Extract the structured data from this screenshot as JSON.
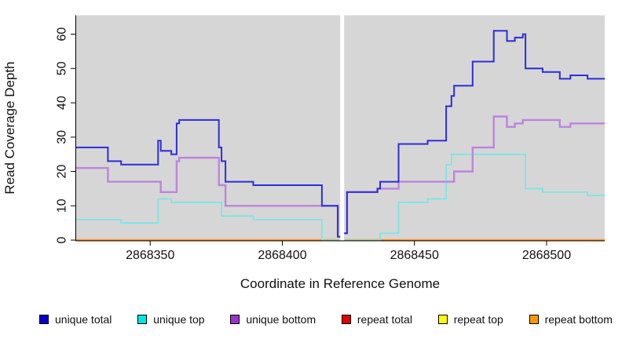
{
  "figure": {
    "background": "#ffffff",
    "panel_background": "#d6d6d6"
  },
  "chart_data": {
    "type": "line",
    "subtype": "step",
    "title": "",
    "xlabel": "Coordinate in Reference Genome",
    "ylabel": "Read Coverage Depth",
    "xlim": [
      2868322,
      2868522
    ],
    "ylim": [
      0,
      65.5
    ],
    "x_ticks": [
      2868350,
      2868400,
      2868450,
      2868500
    ],
    "y_ticks": [
      0,
      10,
      20,
      30,
      40,
      50,
      60
    ],
    "grid": false,
    "legend_position": "bottom",
    "gap_x": [
      2868421.9,
      2868423.4
    ],
    "x_end": 2868522,
    "series": [
      {
        "name": "repeat total",
        "color": "#e60000",
        "width": 2,
        "steps": [
          [
            2868322,
            0
          ]
        ]
      },
      {
        "name": "repeat top",
        "color": "#ffff00",
        "width": 2,
        "steps": [
          [
            2868322,
            0
          ]
        ]
      },
      {
        "name": "repeat bottom",
        "color": "#ff8c1a",
        "width": 2.4,
        "steps": [
          [
            2868322,
            0
          ]
        ]
      },
      {
        "name": "unique top",
        "color": "#76e7e7",
        "width": 1.7,
        "steps": [
          [
            2868322,
            6
          ],
          [
            2868339,
            5
          ],
          [
            2868353,
            12
          ],
          [
            2868358,
            11
          ],
          [
            2868377,
            7
          ],
          [
            2868389,
            6
          ],
          [
            2868415,
            0
          ],
          [
            2868437,
            2
          ],
          [
            2868444,
            11
          ],
          [
            2868455,
            12
          ],
          [
            2868462,
            22
          ],
          [
            2868464,
            25
          ],
          [
            2868492,
            15
          ],
          [
            2868498.5,
            14
          ],
          [
            2868515.5,
            13
          ]
        ]
      },
      {
        "name": "unique bottom",
        "color": "#bd84de",
        "width": 2.4,
        "steps": [
          [
            2868322,
            21
          ],
          [
            2868334,
            17
          ],
          [
            2868354,
            14
          ],
          [
            2868360,
            23
          ],
          [
            2868361,
            24
          ],
          [
            2868376,
            16
          ],
          [
            2868378.5,
            10
          ],
          [
            2868421,
            1
          ],
          [
            2868422.5,
            2
          ],
          [
            2868424.5,
            14
          ],
          [
            2868436,
            15
          ],
          [
            2868444,
            17
          ],
          [
            2868465,
            20
          ],
          [
            2868472,
            27
          ],
          [
            2868480,
            36
          ],
          [
            2868485,
            33
          ],
          [
            2868488,
            34
          ],
          [
            2868491,
            35
          ],
          [
            2868505,
            33
          ],
          [
            2868509,
            34
          ]
        ]
      },
      {
        "name": "unique total",
        "color": "#2d2dd9",
        "width": 2,
        "steps": [
          [
            2868322,
            27
          ],
          [
            2868334,
            23
          ],
          [
            2868339,
            22
          ],
          [
            2868353,
            29
          ],
          [
            2868354,
            26
          ],
          [
            2868358,
            25
          ],
          [
            2868360,
            34
          ],
          [
            2868361,
            35
          ],
          [
            2868376,
            27
          ],
          [
            2868377,
            23
          ],
          [
            2868378.5,
            17
          ],
          [
            2868389,
            16
          ],
          [
            2868415,
            10
          ],
          [
            2868421,
            1
          ],
          [
            2868422.5,
            2
          ],
          [
            2868424.5,
            14
          ],
          [
            2868436,
            15
          ],
          [
            2868437,
            17
          ],
          [
            2868444,
            28
          ],
          [
            2868455,
            29
          ],
          [
            2868462,
            39
          ],
          [
            2868464,
            42
          ],
          [
            2868465,
            45
          ],
          [
            2868472,
            52
          ],
          [
            2868480,
            61
          ],
          [
            2868485,
            58
          ],
          [
            2868488,
            59
          ],
          [
            2868491,
            60
          ],
          [
            2868492,
            50
          ],
          [
            2868498.5,
            49
          ],
          [
            2868505,
            47
          ],
          [
            2868509,
            48
          ],
          [
            2868515.5,
            47
          ]
        ]
      }
    ],
    "zero_overlay": {
      "color": "#95cf9f",
      "width": 2,
      "x": [
        2868415,
        2868437
      ],
      "value": 0
    }
  },
  "legend": {
    "items": [
      {
        "label": "unique total",
        "color": "#0000cc"
      },
      {
        "label": "unique top",
        "color": "#00e5e5"
      },
      {
        "label": "unique bottom",
        "color": "#9933cc"
      },
      {
        "label": "repeat total",
        "color": "#e60000"
      },
      {
        "label": "repeat top",
        "color": "#ffff00"
      },
      {
        "label": "repeat bottom",
        "color": "#ff9900"
      }
    ]
  }
}
